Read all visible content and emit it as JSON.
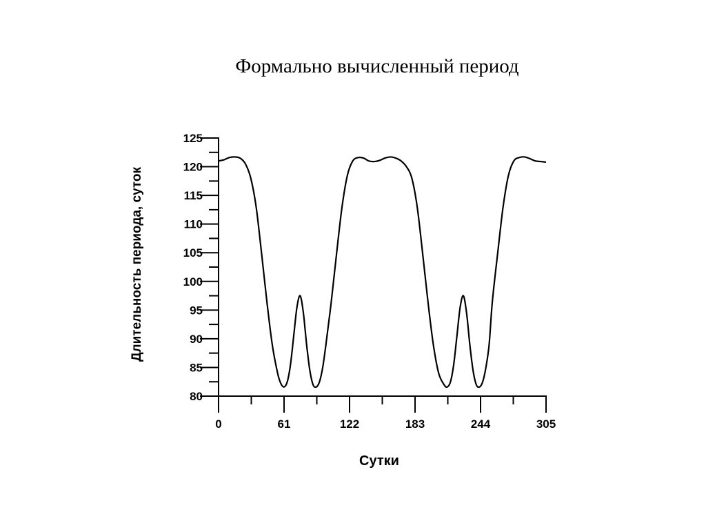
{
  "slide": {
    "title": "Формально вычисленный период"
  },
  "chart_data": {
    "type": "line",
    "title": "",
    "xlabel": "Сутки",
    "ylabel": "Длительность периода, суток",
    "xlim": [
      0,
      305
    ],
    "ylim": [
      80,
      125
    ],
    "x_ticks": [
      0,
      61,
      122,
      183,
      244,
      305
    ],
    "y_ticks": [
      80,
      85,
      90,
      95,
      100,
      105,
      110,
      115,
      120,
      125
    ],
    "grid": false,
    "legend": "none",
    "line_color": "#000000",
    "series": [
      {
        "x": [
          0,
          5,
          10,
          15,
          20,
          25,
          30,
          35,
          40,
          45,
          50,
          55,
          58,
          61,
          64,
          67,
          70,
          73,
          76,
          79,
          82,
          85,
          88,
          91,
          94,
          97,
          100,
          105,
          110,
          115,
          120,
          125,
          130,
          135,
          140,
          145,
          150,
          155,
          160,
          165,
          170,
          175,
          180,
          185,
          190,
          195,
          200,
          205,
          210,
          213,
          216,
          219,
          222,
          225,
          228,
          231,
          234,
          237,
          240,
          243,
          246,
          249,
          252,
          255,
          260,
          265,
          270,
          275,
          280,
          285,
          290,
          295,
          300,
          305
        ],
        "y": [
          121.0,
          121.2,
          121.6,
          121.7,
          121.5,
          120.5,
          118.0,
          113.0,
          105.0,
          96.5,
          89.0,
          84.0,
          82.2,
          81.6,
          82.5,
          85.5,
          90.5,
          95.5,
          97.5,
          94.5,
          89.0,
          84.5,
          82.0,
          81.6,
          82.5,
          85.0,
          89.0,
          96.5,
          105.0,
          113.0,
          118.5,
          121.0,
          121.6,
          121.5,
          121.0,
          120.9,
          121.1,
          121.5,
          121.7,
          121.5,
          121.0,
          120.0,
          118.0,
          113.0,
          105.0,
          96.5,
          89.0,
          84.0,
          82.0,
          81.6,
          82.5,
          85.5,
          90.5,
          95.5,
          97.5,
          94.5,
          89.0,
          84.5,
          82.0,
          81.6,
          82.5,
          85.0,
          89.0,
          96.5,
          105.0,
          113.0,
          118.5,
          121.0,
          121.6,
          121.7,
          121.4,
          121.0,
          120.9,
          120.8
        ]
      }
    ]
  }
}
